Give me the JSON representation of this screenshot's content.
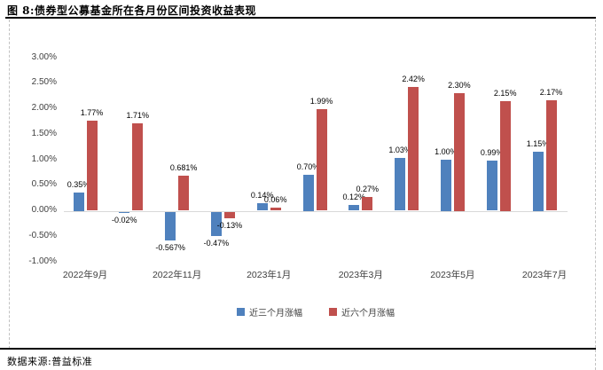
{
  "figure": {
    "title": "图 8:债券型公募基金所在各月份区间投资收益表现",
    "source": "数据来源:普益标准"
  },
  "chart_data": {
    "type": "bar",
    "title": "债券型公募基金所在各月份区间投资收益表现",
    "n_groups": 11,
    "x_ticks": [
      {
        "group_index": 0,
        "label": "2022年9月"
      },
      {
        "group_index": 2,
        "label": "2022年11月"
      },
      {
        "group_index": 4,
        "label": "2023年1月"
      },
      {
        "group_index": 6,
        "label": "2023年3月"
      },
      {
        "group_index": 8,
        "label": "2023年5月"
      },
      {
        "group_index": 10,
        "label": "2023年7月"
      }
    ],
    "series": [
      {
        "name": "近三个月涨幅",
        "color": "#4f81bd",
        "values": [
          0.35,
          -0.02,
          -0.567,
          -0.47,
          0.14,
          0.7,
          0.12,
          1.03,
          1.0,
          0.99,
          1.15
        ],
        "labels": [
          "0.35%",
          "-0.02%",
          "-0.567%",
          "-0.47%",
          "0.14%",
          "0.70%",
          "0.12%",
          "1.03%",
          "1.00%",
          "0.99%",
          "1.15%"
        ]
      },
      {
        "name": "近六个月涨幅",
        "color": "#c0504d",
        "values": [
          1.77,
          1.71,
          0.681,
          -0.13,
          0.06,
          1.99,
          0.27,
          2.42,
          2.3,
          2.15,
          2.17
        ],
        "labels": [
          "1.77%",
          "1.71%",
          "0.681%",
          "-0.13%",
          "0.06%",
          "1.99%",
          "0.27%",
          "2.42%",
          "2.30%",
          "2.15%",
          "2.17%"
        ]
      }
    ],
    "ylim": [
      -1.0,
      3.0
    ],
    "y_tick_values": [
      3.0,
      2.5,
      2.0,
      1.5,
      1.0,
      0.5,
      0.0,
      -0.5,
      -1.0
    ],
    "y_tick_labels": [
      "3.00%",
      "2.50%",
      "2.00%",
      "1.50%",
      "1.00%",
      "0.50%",
      "0.00%",
      "-0.50%",
      "-1.00%"
    ],
    "grid": false,
    "legend_position": "bottom",
    "axis_line_color": "#d9d9d9"
  }
}
